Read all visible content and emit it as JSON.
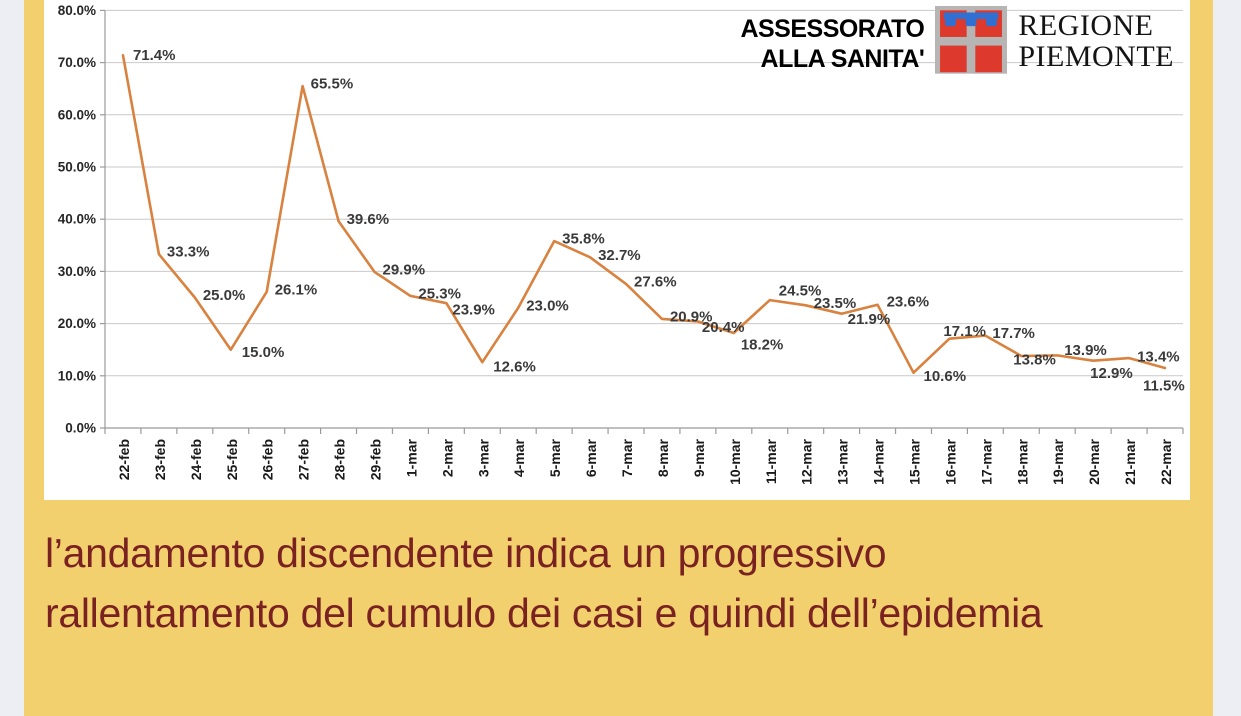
{
  "colors": {
    "page_background": "#edeef3",
    "slide_background": "#f2d06e",
    "chart_panel_background": "#ffffff",
    "caption_text": "#7a2121",
    "line_color": "#d9823f",
    "gridline": "#c9c9c9",
    "axis": "#9b9b9b",
    "data_label_text": "#3a3a3a",
    "header_text": "#000000",
    "logo_red": "#dd392c",
    "logo_gray": "#b7b5b3",
    "logo_blue": "#2f70d2"
  },
  "header": {
    "department_line1": "ASSESSORATO",
    "department_line2": "ALLA SANITA'",
    "org_line1": "REGIONE",
    "org_line2": "PIEMONTE"
  },
  "caption": {
    "line1": "l’andamento discendente indica un progressivo",
    "line2": "rallentamento del cumulo dei casi e quindi dell’epidemia"
  },
  "chart_data": {
    "type": "line",
    "title": "",
    "xlabel": "",
    "ylabel": "",
    "categories": [
      "22-feb",
      "23-feb",
      "24-feb",
      "25-feb",
      "26-feb",
      "27-feb",
      "28-feb",
      "29-feb",
      "1-mar",
      "2-mar",
      "3-mar",
      "4-mar",
      "5-mar",
      "6-mar",
      "7-mar",
      "8-mar",
      "9-mar",
      "10-mar",
      "11-mar",
      "12-mar",
      "13-mar",
      "14-mar",
      "15-mar",
      "16-mar",
      "17-mar",
      "18-mar",
      "19-mar",
      "20-mar",
      "21-mar",
      "22-mar"
    ],
    "values": [
      71.4,
      33.3,
      25.0,
      15.0,
      26.1,
      65.5,
      39.6,
      29.9,
      25.3,
      23.9,
      12.6,
      23.0,
      35.8,
      32.7,
      27.6,
      20.9,
      20.4,
      18.2,
      24.5,
      23.5,
      21.9,
      23.6,
      10.6,
      17.1,
      17.7,
      13.8,
      13.9,
      12.9,
      13.4,
      11.5
    ],
    "ylim": [
      0,
      80
    ],
    "ytick_step": 10,
    "ytick_labels": [
      "0.0%",
      "10.0%",
      "20.0%",
      "30.0%",
      "40.0%",
      "50.0%",
      "60.0%",
      "70.0%",
      "80.0%"
    ],
    "grid": true,
    "legend": "none",
    "line_color": "#d9823f",
    "label_default_offset": [
      8,
      -2
    ],
    "label_offsets": {
      "0": [
        10,
        0
      ],
      "3": [
        11,
        3
      ],
      "9": [
        6,
        7
      ],
      "10": [
        11,
        5
      ],
      "16": [
        4,
        6
      ],
      "17": [
        7,
        12
      ],
      "18": [
        9,
        -9
      ],
      "20": [
        6,
        6
      ],
      "21": [
        9,
        -3
      ],
      "22": [
        10,
        4
      ],
      "23": [
        -6,
        -7
      ],
      "24": [
        7,
        -2
      ],
      "25": [
        -8,
        4
      ],
      "26": [
        7,
        -5
      ],
      "27": [
        -3,
        13
      ],
      "28": [
        8,
        -1
      ],
      "29": [
        -22,
        18
      ]
    }
  }
}
